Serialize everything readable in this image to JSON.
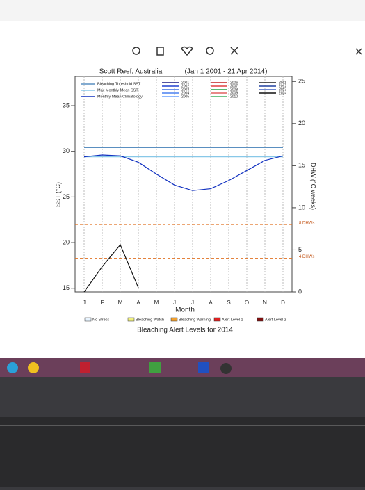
{
  "chart_data": {
    "type": "line",
    "title": "Scott Reef, Australia",
    "subtitle": "(Jan 1 2001 - 21 Apr 2014)",
    "x_label": "Month",
    "y_label": "SST (°C)",
    "y2_label": "DHW (°C weeks)",
    "categories": [
      "J",
      "F",
      "M",
      "A",
      "M",
      "J",
      "J",
      "A",
      "S",
      "O",
      "N",
      "D"
    ],
    "ylim": [
      14.6,
      38.2
    ],
    "yticks": [
      15,
      20,
      25,
      30,
      35
    ],
    "y2lim": [
      0,
      25.6
    ],
    "y2ticks": [
      0,
      5,
      10,
      15,
      20,
      25
    ],
    "series": [
      {
        "name": "Bleaching Threshold SST",
        "color": "#5a8fc0",
        "values": [
          30.4,
          30.4,
          30.4,
          30.4,
          30.4,
          30.4,
          30.4,
          30.4,
          30.4,
          30.4,
          30.4,
          30.4
        ]
      },
      {
        "name": "Max Monthly Mean SST",
        "color": "#88c8e8",
        "values": [
          29.4,
          29.4,
          29.4,
          29.4,
          29.4,
          29.4,
          29.4,
          29.4,
          29.4,
          29.4,
          29.4,
          29.4
        ]
      },
      {
        "name": "Monthly Mean Climatology",
        "color": "#1030c0",
        "values": [
          29.4,
          29.6,
          29.5,
          28.8,
          27.5,
          26.3,
          25.7,
          25.9,
          26.8,
          27.9,
          29.0,
          29.5
        ]
      },
      {
        "color": "#111111",
        "axis": "y2",
        "values": [
          0,
          3,
          5.6,
          0.5,
          null,
          null,
          null,
          null,
          null,
          null,
          null,
          null
        ]
      }
    ],
    "years": [
      "2001",
      "2002",
      "2003",
      "2004",
      "2005",
      "2006",
      "2007",
      "2008",
      "2009",
      "2010",
      "2011",
      "2012",
      "2013",
      "2014"
    ],
    "year_colors": [
      "#1a1a80",
      "#2040d0",
      "#3a6ae0",
      "#4a80f0",
      "#6aa0ff",
      "#c02020",
      "#e04040",
      "#20a040",
      "#e06060",
      "#40b060",
      "#202020",
      "#2040a0",
      "#4060c0",
      "#101010"
    ],
    "dhw_thresholds": [
      {
        "value": 8,
        "label": "8 DHWs"
      },
      {
        "value": 4,
        "label": "4 DHWs"
      }
    ],
    "alert_levels": [
      "No Stress",
      "Bleaching Watch",
      "Bleaching Warning",
      "Alert Level 1",
      "Alert Level 2"
    ],
    "alert_colors": [
      "#e8f4ff",
      "#f0f080",
      "#f0a030",
      "#e02020",
      "#801010"
    ],
    "footer": "Bleaching Alert Levels for 2014"
  }
}
